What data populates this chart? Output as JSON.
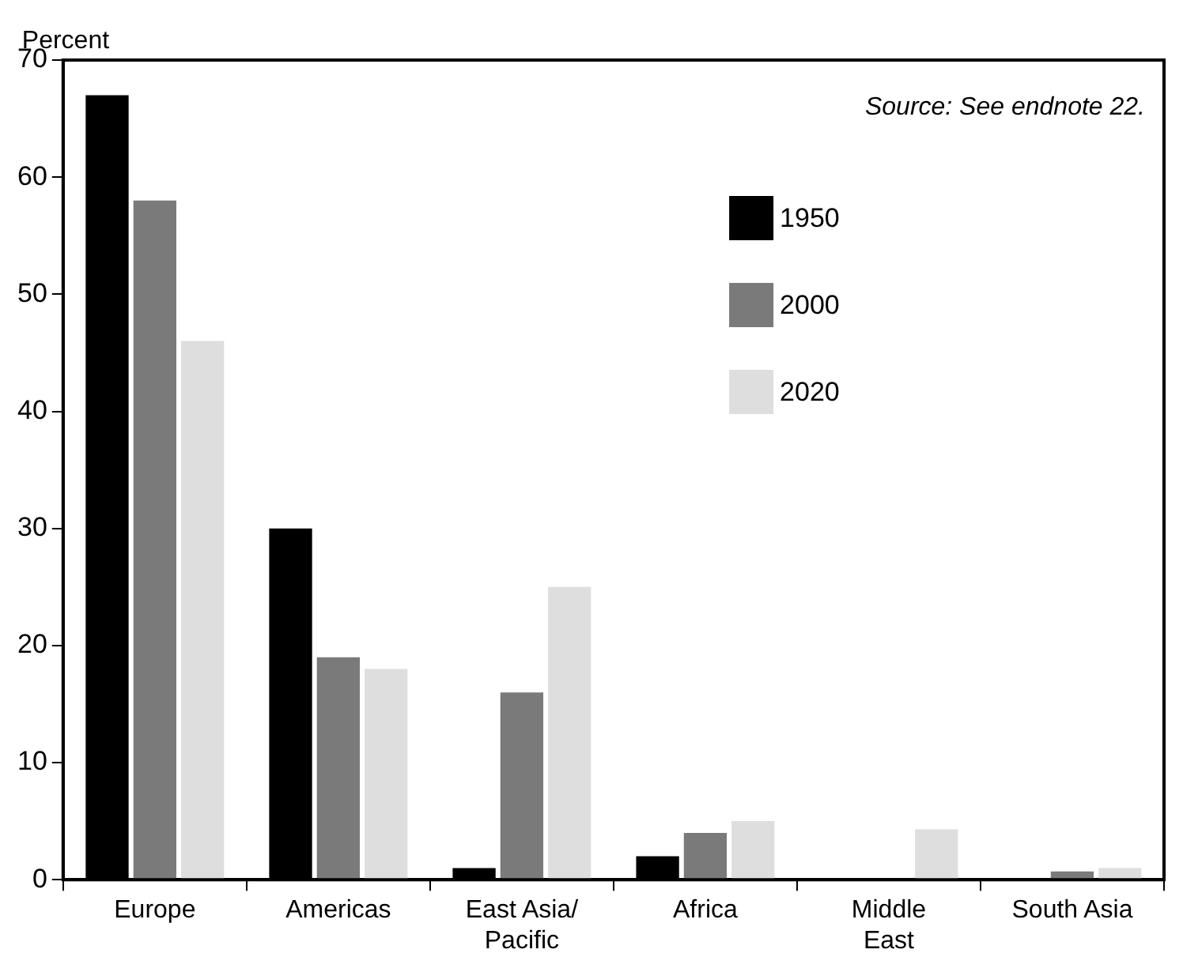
{
  "chart_data": {
    "type": "bar",
    "ylabel": "Percent",
    "annotations": [
      "Source: See endnote 22."
    ],
    "categories": [
      "Europe",
      "Americas",
      "East Asia/ Pacific",
      "Africa",
      "Middle East",
      "South Asia"
    ],
    "series": [
      {
        "name": "1950",
        "color": "#000000",
        "values": [
          67,
          30,
          1,
          2,
          null,
          null
        ]
      },
      {
        "name": "2000",
        "color": "#7a7a7a",
        "values": [
          58,
          19,
          16,
          4,
          null,
          0.7
        ]
      },
      {
        "name": "2020",
        "color": "#dedede",
        "values": [
          46,
          18,
          25,
          5,
          4.3,
          1
        ]
      }
    ],
    "ylim": [
      0,
      70
    ],
    "yticks": [
      0,
      10,
      20,
      30,
      40,
      50,
      60,
      70
    ],
    "grid": false,
    "legend": "top right"
  }
}
